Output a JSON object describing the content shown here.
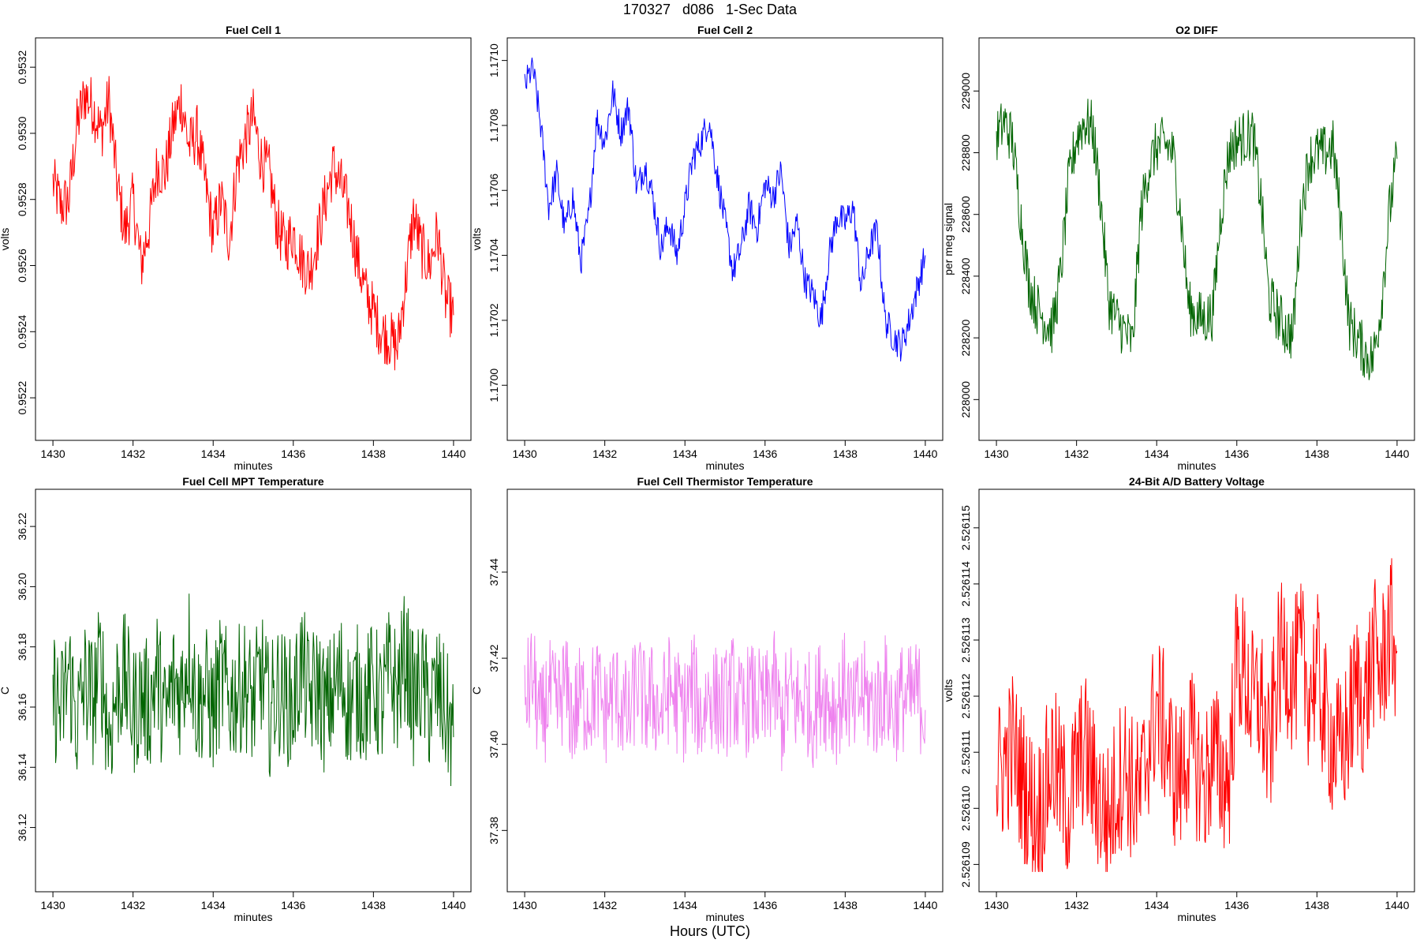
{
  "figure": {
    "title": "170327   d086   1-Sec Data",
    "xlabel": "Hours (UTC)"
  },
  "chart_data": [
    {
      "type": "line",
      "title": "Fuel Cell 1",
      "xlabel": "minutes",
      "ylabel": "volts",
      "color": "#ff0000",
      "xlim": [
        1430,
        1440
      ],
      "ylim": [
        0.95212,
        0.95324
      ],
      "xticks": [
        1430,
        1432,
        1434,
        1436,
        1438,
        1440
      ],
      "yticks": [
        0.9522,
        0.9524,
        0.9526,
        0.9528,
        0.953,
        0.9532
      ],
      "ytick_labels": [
        "0.9522",
        "0.9524",
        "0.9526",
        "0.9528",
        "0.9530",
        "0.9532"
      ],
      "series": [
        {
          "name": "Fuel Cell 1",
          "x": [
            1430,
            1430.2,
            1430.4,
            1430.6,
            1430.8,
            1431.0,
            1431.2,
            1431.4,
            1431.6,
            1431.8,
            1432.0,
            1432.2,
            1432.4,
            1432.6,
            1432.8,
            1433.0,
            1433.2,
            1433.4,
            1433.6,
            1433.8,
            1434.0,
            1434.2,
            1434.4,
            1434.6,
            1434.8,
            1435.0,
            1435.2,
            1435.4,
            1435.6,
            1435.8,
            1436.0,
            1436.2,
            1436.4,
            1436.6,
            1436.8,
            1437.0,
            1437.2,
            1437.4,
            1437.6,
            1437.8,
            1438.0,
            1438.2,
            1438.4,
            1438.6,
            1438.8,
            1439.0,
            1439.2,
            1439.4,
            1439.6,
            1439.8,
            1440.0
          ],
          "values": [
            0.95285,
            0.95278,
            0.9528,
            0.95302,
            0.95312,
            0.95308,
            0.953,
            0.9531,
            0.95285,
            0.9527,
            0.9528,
            0.9526,
            0.95272,
            0.9529,
            0.95288,
            0.95302,
            0.9531,
            0.95296,
            0.953,
            0.95285,
            0.9527,
            0.9528,
            0.95268,
            0.9529,
            0.95298,
            0.95305,
            0.95292,
            0.95288,
            0.95272,
            0.95266,
            0.9527,
            0.95262,
            0.95258,
            0.95268,
            0.9528,
            0.9529,
            0.95284,
            0.95276,
            0.95262,
            0.95252,
            0.95246,
            0.9524,
            0.95238,
            0.95235,
            0.95255,
            0.95275,
            0.95265,
            0.9526,
            0.9527,
            0.9525,
            0.95245
          ]
        }
      ]
    },
    {
      "type": "line",
      "title": "Fuel Cell 2",
      "xlabel": "minutes",
      "ylabel": "volts",
      "color": "#0000ff",
      "xlim": [
        1430,
        1440
      ],
      "ylim": [
        1.16988,
        1.17102
      ],
      "xticks": [
        1430,
        1432,
        1434,
        1436,
        1438,
        1440
      ],
      "yticks": [
        1.17,
        1.1702,
        1.1704,
        1.1706,
        1.1708,
        1.171
      ],
      "ytick_labels": [
        "1.1700",
        "1.1702",
        "1.1704",
        "1.1706",
        "1.1708",
        "1.1710"
      ],
      "series": [
        {
          "name": "Fuel Cell 2",
          "x": [
            1430,
            1430.2,
            1430.4,
            1430.6,
            1430.8,
            1431.0,
            1431.2,
            1431.4,
            1431.6,
            1431.8,
            1432.0,
            1432.2,
            1432.4,
            1432.6,
            1432.8,
            1433.0,
            1433.2,
            1433.4,
            1433.6,
            1433.8,
            1434.0,
            1434.2,
            1434.4,
            1434.6,
            1434.8,
            1435.0,
            1435.2,
            1435.4,
            1435.6,
            1435.8,
            1436.0,
            1436.2,
            1436.4,
            1436.6,
            1436.8,
            1437.0,
            1437.2,
            1437.4,
            1437.6,
            1437.8,
            1438.0,
            1438.2,
            1438.4,
            1438.6,
            1438.8,
            1439.0,
            1439.2,
            1439.4,
            1439.6,
            1439.8,
            1440.0
          ],
          "values": [
            1.17092,
            1.17098,
            1.1708,
            1.17055,
            1.17065,
            1.17048,
            1.17058,
            1.17038,
            1.17052,
            1.17082,
            1.17075,
            1.1709,
            1.17078,
            1.17086,
            1.1706,
            1.17068,
            1.17058,
            1.17042,
            1.1705,
            1.1704,
            1.17055,
            1.1707,
            1.17075,
            1.17082,
            1.17065,
            1.1705,
            1.17035,
            1.17042,
            1.17055,
            1.17048,
            1.17062,
            1.17058,
            1.17066,
            1.17042,
            1.1705,
            1.17032,
            1.17028,
            1.1702,
            1.1704,
            1.17052,
            1.1705,
            1.17055,
            1.1703,
            1.17042,
            1.17048,
            1.1702,
            1.17015,
            1.17012,
            1.1702,
            1.1703,
            1.1704
          ]
        }
      ]
    },
    {
      "type": "line",
      "title": "O2 DIFF",
      "xlabel": "minutes",
      "ylabel": "per meg signal",
      "color": "#006400",
      "xlim": [
        1430,
        1440
      ],
      "ylim": [
        227920,
        229120
      ],
      "xticks": [
        1430,
        1432,
        1434,
        1436,
        1438,
        1440
      ],
      "yticks": [
        228000,
        228200,
        228400,
        228600,
        228800,
        229000
      ],
      "ytick_labels": [
        "228000",
        "228200",
        "228400",
        "228600",
        "228800",
        "229000"
      ],
      "series": [
        {
          "name": "O2 DIFF",
          "x": [
            1430,
            1430.2,
            1430.4,
            1430.6,
            1430.8,
            1431.0,
            1431.2,
            1431.4,
            1431.6,
            1431.8,
            1432.0,
            1432.2,
            1432.4,
            1432.6,
            1432.8,
            1433.0,
            1433.2,
            1433.4,
            1433.6,
            1433.8,
            1434.0,
            1434.2,
            1434.4,
            1434.6,
            1434.8,
            1435.0,
            1435.2,
            1435.4,
            1435.6,
            1435.8,
            1436.0,
            1436.2,
            1436.4,
            1436.6,
            1436.8,
            1437.0,
            1437.2,
            1437.4,
            1437.6,
            1437.8,
            1438.0,
            1438.2,
            1438.4,
            1438.6,
            1438.8,
            1439.0,
            1439.2,
            1439.4,
            1439.6,
            1439.8,
            1440.0
          ],
          "values": [
            228850,
            228900,
            228840,
            228600,
            228380,
            228300,
            228260,
            228230,
            228400,
            228700,
            228850,
            228900,
            228880,
            228650,
            228320,
            228260,
            228220,
            228180,
            228600,
            228750,
            228820,
            228830,
            228800,
            228600,
            228300,
            228270,
            228260,
            228280,
            228600,
            228800,
            228840,
            228850,
            228860,
            228650,
            228330,
            228280,
            228230,
            228210,
            228600,
            228780,
            228800,
            228800,
            228820,
            228580,
            228250,
            228200,
            228150,
            228130,
            228300,
            228600,
            228780
          ]
        }
      ]
    },
    {
      "type": "line",
      "title": "Fuel Cell MPT Temperature",
      "xlabel": "minutes",
      "ylabel": "C",
      "color": "#006400",
      "xlim": [
        1430,
        1440
      ],
      "ylim": [
        36.104,
        36.227
      ],
      "xticks": [
        1430,
        1432,
        1434,
        1436,
        1438,
        1440
      ],
      "yticks": [
        36.12,
        36.14,
        36.16,
        36.18,
        36.2,
        36.22
      ],
      "ytick_labels": [
        "36.12",
        "36.14",
        "36.16",
        "36.18",
        "36.20",
        "36.22"
      ],
      "series": [
        {
          "name": "Fuel Cell MPT Temperature",
          "x": [
            1430,
            1430.2,
            1430.4,
            1430.6,
            1430.8,
            1431.0,
            1431.2,
            1431.4,
            1431.6,
            1431.8,
            1432.0,
            1432.2,
            1432.4,
            1432.6,
            1432.8,
            1433.0,
            1433.2,
            1433.4,
            1433.6,
            1433.8,
            1434.0,
            1434.2,
            1434.4,
            1434.6,
            1434.8,
            1435.0,
            1435.2,
            1435.4,
            1435.6,
            1435.8,
            1436.0,
            1436.2,
            1436.4,
            1436.6,
            1436.8,
            1437.0,
            1437.2,
            1437.4,
            1437.6,
            1437.8,
            1438.0,
            1438.2,
            1438.4,
            1438.6,
            1438.8,
            1439.0,
            1439.2,
            1439.4,
            1439.6,
            1439.8,
            1440.0
          ],
          "values": [
            36.165,
            36.158,
            36.172,
            36.155,
            36.168,
            36.162,
            36.175,
            36.15,
            36.166,
            36.17,
            36.158,
            36.164,
            36.16,
            36.172,
            36.155,
            36.168,
            36.165,
            36.18,
            36.16,
            36.166,
            36.158,
            36.17,
            36.162,
            36.165,
            36.168,
            36.16,
            36.172,
            36.158,
            36.166,
            36.163,
            36.16,
            36.175,
            36.162,
            36.168,
            36.158,
            36.165,
            36.17,
            36.16,
            36.166,
            36.162,
            36.168,
            36.16,
            36.172,
            36.165,
            36.178,
            36.162,
            36.168,
            36.16,
            36.166,
            36.158,
            36.15
          ]
        }
      ]
    },
    {
      "type": "line",
      "title": "Fuel Cell Thermistor Temperature",
      "xlabel": "minutes",
      "ylabel": "C",
      "color": "#ee82ee",
      "xlim": [
        1430,
        1440
      ],
      "ylim": [
        37.3695,
        37.4555
      ],
      "xticks": [
        1430,
        1432,
        1434,
        1436,
        1438,
        1440
      ],
      "yticks": [
        37.38,
        37.4,
        37.42,
        37.44
      ],
      "ytick_labels": [
        "37.38",
        "37.40",
        "37.42",
        "37.44"
      ],
      "series": [
        {
          "name": "Fuel Cell Thermistor Temperature",
          "x": [
            1430,
            1430.2,
            1430.4,
            1430.6,
            1430.8,
            1431.0,
            1431.2,
            1431.4,
            1431.6,
            1431.8,
            1432.0,
            1432.2,
            1432.4,
            1432.6,
            1432.8,
            1433.0,
            1433.2,
            1433.4,
            1433.6,
            1433.8,
            1434.0,
            1434.2,
            1434.4,
            1434.6,
            1434.8,
            1435.0,
            1435.2,
            1435.4,
            1435.6,
            1435.8,
            1436.0,
            1436.2,
            1436.4,
            1436.6,
            1436.8,
            1437.0,
            1437.2,
            1437.4,
            1437.6,
            1437.8,
            1438.0,
            1438.2,
            1438.4,
            1438.6,
            1438.8,
            1439.0,
            1439.2,
            1439.4,
            1439.6,
            1439.8,
            1440.0
          ],
          "values": [
            37.41,
            37.416,
            37.404,
            37.412,
            37.408,
            37.414,
            37.406,
            37.411,
            37.409,
            37.413,
            37.407,
            37.412,
            37.41,
            37.405,
            37.415,
            37.409,
            37.411,
            37.407,
            37.413,
            37.41,
            37.408,
            37.414,
            37.406,
            37.412,
            37.41,
            37.409,
            37.413,
            37.407,
            37.411,
            37.41,
            37.408,
            37.415,
            37.405,
            37.412,
            37.409,
            37.411,
            37.407,
            37.413,
            37.41,
            37.408,
            37.414,
            37.406,
            37.412,
            37.41,
            37.409,
            37.413,
            37.407,
            37.411,
            37.41,
            37.412,
            37.408
          ]
        }
      ]
    },
    {
      "type": "line",
      "title": "24-Bit A/D Battery Voltage",
      "xlabel": "minutes",
      "ylabel": "volts",
      "color": "#ff0000",
      "xlim": [
        1430,
        1440
      ],
      "ylim": [
        2.5261088,
        2.5261154
      ],
      "xticks": [
        1430,
        1432,
        1434,
        1436,
        1438,
        1440
      ],
      "yticks": [
        2.526109,
        2.52611,
        2.526111,
        2.526112,
        2.526113,
        2.526114,
        2.526115
      ],
      "ytick_labels": [
        "2.526109",
        "2.526110",
        "2.526111",
        "2.526112",
        "2.526113",
        "2.526114",
        "2.526115"
      ],
      "series": [
        {
          "name": "24-Bit A/D Battery Voltage",
          "x": [
            1430,
            1430.2,
            1430.4,
            1430.6,
            1430.8,
            1431.0,
            1431.2,
            1431.4,
            1431.6,
            1431.8,
            1432.0,
            1432.2,
            1432.4,
            1432.6,
            1432.8,
            1433.0,
            1433.2,
            1433.4,
            1433.6,
            1433.8,
            1434.0,
            1434.2,
            1434.4,
            1434.6,
            1434.8,
            1435.0,
            1435.2,
            1435.4,
            1435.6,
            1435.8,
            1436.0,
            1436.2,
            1436.4,
            1436.6,
            1436.8,
            1437.0,
            1437.2,
            1437.4,
            1437.6,
            1437.8,
            1438.0,
            1438.2,
            1438.4,
            1438.6,
            1438.8,
            1439.0,
            1439.2,
            1439.4,
            1439.6,
            1439.8,
            1440.0
          ],
          "values": [
            2.5261105,
            2.5261108,
            2.5261111,
            2.5261106,
            2.5261102,
            2.5261098,
            2.5261103,
            2.5261109,
            2.5261104,
            2.52611,
            2.5261107,
            2.5261111,
            2.5261105,
            2.5261101,
            2.5261098,
            2.5261104,
            2.5261108,
            2.5261103,
            2.5261102,
            2.5261112,
            2.5261118,
            2.5261114,
            2.5261107,
            2.5261105,
            2.5261112,
            2.5261108,
            2.5261104,
            2.526111,
            2.5261106,
            2.5261105,
            2.5261127,
            2.5261124,
            2.5261118,
            2.526112,
            2.5261108,
            2.5261124,
            2.5261128,
            2.5261123,
            2.5261127,
            2.5261121,
            2.5261125,
            2.5261116,
            2.5261112,
            2.5261109,
            2.5261115,
            2.5261122,
            2.5261118,
            2.5261128,
            2.5261124,
            2.5261132,
            2.5261128
          ]
        }
      ]
    }
  ]
}
